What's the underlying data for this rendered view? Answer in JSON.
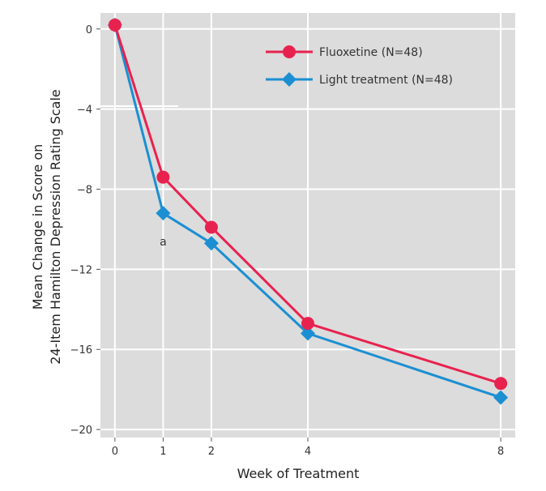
{
  "chart_data": {
    "type": "line",
    "title": "",
    "xlabel": "Week of Treatment",
    "ylabel_lines": [
      "Mean Change in Score on",
      "24-Item Hamilton Depression Rating Scale"
    ],
    "x_ticks": [
      0,
      1,
      2,
      4,
      8
    ],
    "y_ticks": [
      0,
      -4,
      -8,
      -12,
      -16,
      -20
    ],
    "x_tick_labels": [
      "0",
      "1",
      "2",
      "4",
      "8"
    ],
    "y_tick_labels": [
      "0",
      "−4",
      "−8",
      "−12",
      "−16",
      "−20"
    ],
    "xlim": [
      -0.3,
      8.3
    ],
    "ylim": [
      -20.4,
      0.8
    ],
    "grid": true,
    "legend_position": "top-right",
    "series": [
      {
        "name": "Fluoxetine (N=48)",
        "color": "#e8224f",
        "marker": "circle",
        "x": [
          0,
          1,
          2,
          4,
          8
        ],
        "y": [
          0.2,
          -7.4,
          -9.9,
          -14.7,
          -17.7
        ]
      },
      {
        "name": "Light treatment (N=48)",
        "color": "#1b8fd2",
        "marker": "diamond",
        "x": [
          0,
          1,
          2,
          4,
          8
        ],
        "y": [
          0.2,
          -9.2,
          -10.7,
          -15.2,
          -18.4
        ]
      }
    ],
    "annotations": [
      {
        "text": "a",
        "x": 1,
        "y": -10.6
      }
    ]
  }
}
